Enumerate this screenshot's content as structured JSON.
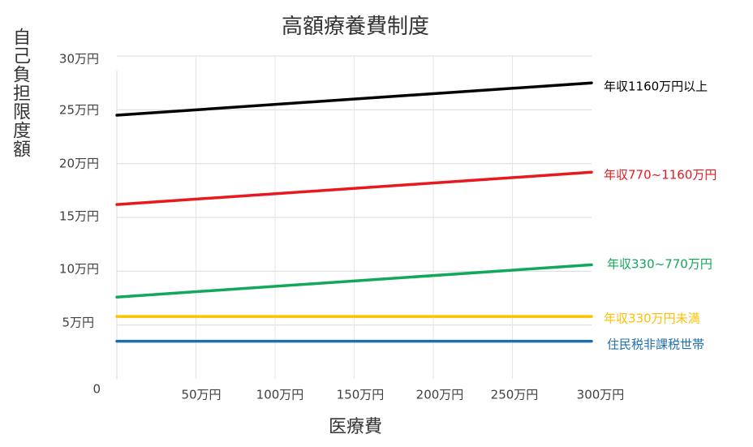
{
  "chart_data": {
    "type": "line",
    "title": "高額療養費制度",
    "xlabel": "医療費",
    "ylabel": "自己負担限度額",
    "xlim": [
      0,
      300
    ],
    "ylim": [
      0,
      30
    ],
    "x_ticks": [
      "50万円",
      "100万円",
      "150万円",
      "200万円",
      "250万円",
      "300万円"
    ],
    "y_ticks": [
      "0",
      "5万円",
      "10万円",
      "15万円",
      "20万円",
      "25万円",
      "30万円"
    ],
    "grid": true,
    "legend": "inline-right",
    "series": [
      {
        "name": "年収1160万円以上",
        "color": "#000000",
        "x": [
          0,
          300
        ],
        "y": [
          24.5,
          27.5
        ]
      },
      {
        "name": "年収770~1160万円",
        "color": "#e8191e",
        "x": [
          0,
          300
        ],
        "y": [
          16.2,
          19.2
        ]
      },
      {
        "name": "年収330~770万円",
        "color": "#12a85a",
        "x": [
          0,
          300
        ],
        "y": [
          7.6,
          10.6
        ]
      },
      {
        "name": "年収330万円未満",
        "color": "#ffc000",
        "x": [
          0,
          300
        ],
        "y": [
          5.8,
          5.8
        ]
      },
      {
        "name": "住民税非課税世帯",
        "color": "#1f6fad",
        "x": [
          0,
          300
        ],
        "y": [
          3.5,
          3.5
        ]
      }
    ]
  }
}
